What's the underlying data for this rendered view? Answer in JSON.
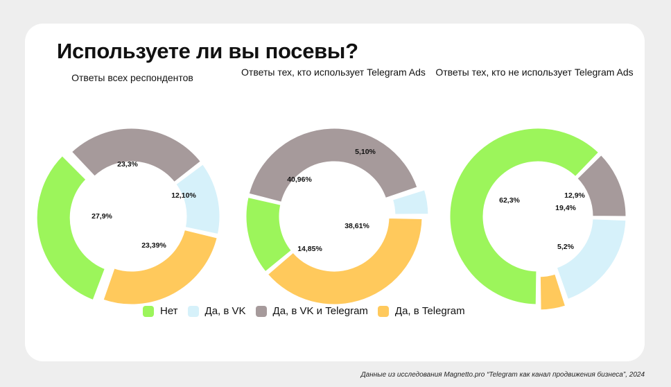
{
  "title": "Используете ли вы посевы?",
  "legend": [
    {
      "label": "Нет",
      "color": "#9cf55b"
    },
    {
      "label": "Да, в VK",
      "color": "#d6f1fa"
    },
    {
      "label": "Да, в VK и Telegram",
      "color": "#a69a9b"
    },
    {
      "label": "Да, в Telegram",
      "color": "#ffc95c"
    }
  ],
  "footnote": "Данные из исследования Magnetto.pro “Telegram как канал продвижения бизнеса”, 2024",
  "chart_data": [
    {
      "type": "pie",
      "variant": "donut",
      "title": "Ответы всех респондентов",
      "categories": [
        "Нет",
        "Да, в VK",
        "Да, в VK и Telegram",
        "Да, в Telegram"
      ],
      "values": [
        27.9,
        12.1,
        23.3,
        23.39
      ],
      "labels": [
        "27,9%",
        "12,10%",
        "23,3%",
        "23,39%"
      ]
    },
    {
      "type": "pie",
      "variant": "donut",
      "title": "Ответы тех, кто использует Telegram Ads",
      "categories": [
        "Нет",
        "Да, в VK",
        "Да, в VK и Telegram",
        "Да, в Telegram"
      ],
      "values": [
        14.85,
        5.1,
        40.96,
        38.61
      ],
      "labels": [
        "14,85%",
        "5,10%",
        "40,96%",
        "38,61%"
      ]
    },
    {
      "type": "pie",
      "variant": "donut",
      "title": "Ответы тех, кто не использует Telegram Ads",
      "categories": [
        "Нет",
        "Да, в VK",
        "Да, в VK и Telegram",
        "Да, в Telegram"
      ],
      "values": [
        62.3,
        19.4,
        12.9,
        5.2
      ],
      "labels": [
        "62,3%",
        "19,4%",
        "12,9%",
        "5,2%"
      ]
    }
  ]
}
